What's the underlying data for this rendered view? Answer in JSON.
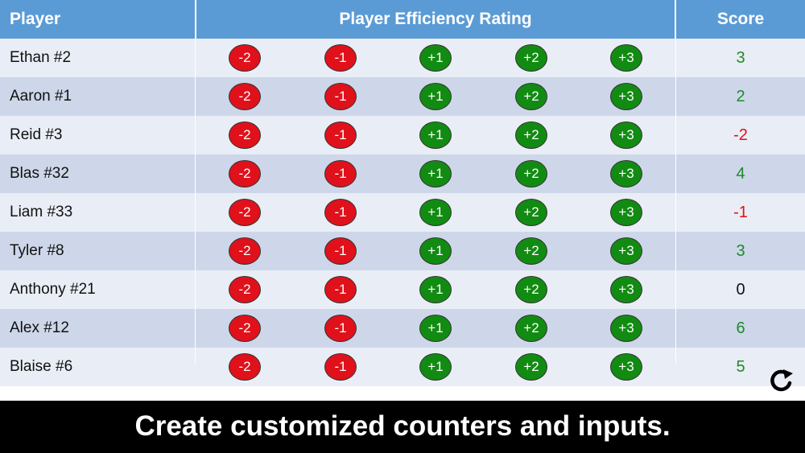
{
  "header": {
    "player_label": "Player",
    "rating_label": "Player Efficiency Rating",
    "score_label": "Score"
  },
  "buttons": [
    "-2",
    "-1",
    "+1",
    "+2",
    "+3"
  ],
  "colors": {
    "header_bg": "#5b9bd5",
    "negative": "#e0111b",
    "positive": "#128b12",
    "row_light": "#e9edf5",
    "row_dark": "#cdd7e9"
  },
  "players": [
    {
      "name": "Ethan #2",
      "score": "3",
      "score_color": "#1e8a2a"
    },
    {
      "name": "Aaron #1",
      "score": "2",
      "score_color": "#1e8a2a"
    },
    {
      "name": "Reid #3",
      "score": "-2",
      "score_color": "#e0111b"
    },
    {
      "name": "Blas #32",
      "score": "4",
      "score_color": "#1e8a2a"
    },
    {
      "name": "Liam #33",
      "score": "-1",
      "score_color": "#e0111b"
    },
    {
      "name": "Tyler #8",
      "score": "3",
      "score_color": "#1e8a2a"
    },
    {
      "name": "Anthony #21",
      "score": "0",
      "score_color": "#111111"
    },
    {
      "name": "Alex #12",
      "score": "6",
      "score_color": "#1e8a2a"
    },
    {
      "name": "Blaise #6",
      "score": "5",
      "score_color": "#1e8a2a"
    }
  ],
  "refresh_icon": "refresh-icon",
  "banner_text": "Create customized counters and inputs."
}
